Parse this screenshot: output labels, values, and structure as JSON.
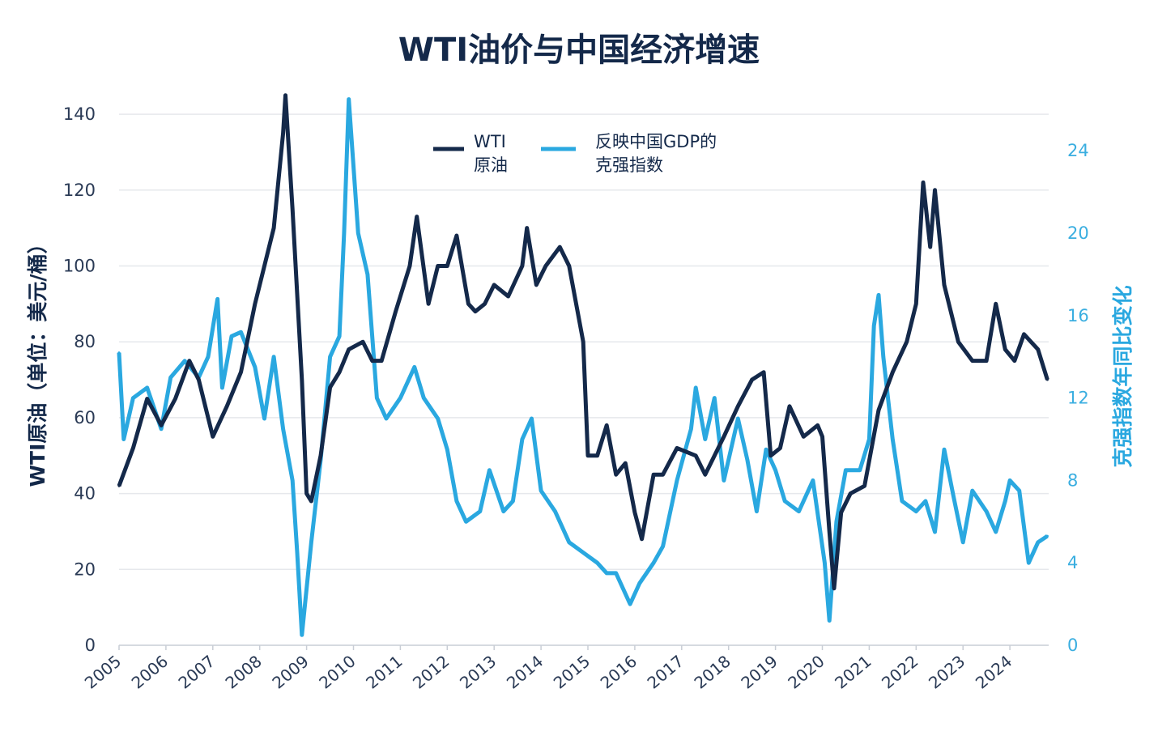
{
  "chart_data": {
    "type": "line",
    "title": "WTI油价与中国经济增速",
    "ylabel_left": "WTI原油（单位：美元/桶）",
    "ylabel_right": "克强指数年同比变化",
    "ylim_left": [
      0,
      145
    ],
    "ylim_right": [
      0,
      26
    ],
    "yticks_left": [
      "0",
      "20",
      "40",
      "60",
      "80",
      "100",
      "120",
      "140"
    ],
    "yticks_right": [
      "0",
      "4",
      "8",
      "12",
      "16",
      "20",
      "24"
    ],
    "xticks": [
      "2005",
      "2006",
      "2007",
      "2008",
      "2009",
      "2010",
      "2011",
      "2012",
      "2013",
      "2014",
      "2015",
      "2016",
      "2017",
      "2018",
      "2019",
      "2020",
      "2021",
      "2022",
      "2023",
      "2024"
    ],
    "grid": true,
    "legend_position": "top-center",
    "colors": {
      "wti": "#14294a",
      "keqiang": "#2aa8e0"
    },
    "series": [
      {
        "name_lines": [
          "WTI",
          "原油"
        ],
        "axis": "left",
        "x": [
          2005.0,
          2005.3,
          2005.6,
          2005.9,
          2006.2,
          2006.5,
          2006.7,
          2006.9,
          2007.0,
          2007.3,
          2007.6,
          2007.9,
          2008.0,
          2008.3,
          2008.5,
          2008.55,
          2008.7,
          2008.9,
          2009.0,
          2009.1,
          2009.3,
          2009.5,
          2009.7,
          2009.9,
          2010.2,
          2010.4,
          2010.6,
          2010.9,
          2011.2,
          2011.35,
          2011.6,
          2011.8,
          2012.0,
          2012.2,
          2012.45,
          2012.6,
          2012.8,
          2013.0,
          2013.3,
          2013.6,
          2013.7,
          2013.9,
          2014.1,
          2014.4,
          2014.6,
          2014.9,
          2015.0,
          2015.2,
          2015.4,
          2015.6,
          2015.8,
          2016.0,
          2016.15,
          2016.4,
          2016.6,
          2016.9,
          2017.3,
          2017.5,
          2017.9,
          2018.2,
          2018.5,
          2018.75,
          2018.9,
          2019.1,
          2019.3,
          2019.6,
          2019.9,
          2020.0,
          2020.15,
          2020.25,
          2020.4,
          2020.6,
          2020.9,
          2021.2,
          2021.5,
          2021.8,
          2022.0,
          2022.15,
          2022.3,
          2022.4,
          2022.6,
          2022.9,
          2023.2,
          2023.5,
          2023.7,
          2023.9,
          2024.1,
          2024.3,
          2024.6,
          2024.8
        ],
        "y": [
          42,
          52,
          65,
          58,
          65,
          75,
          70,
          60,
          55,
          63,
          72,
          90,
          95,
          110,
          135,
          145,
          115,
          70,
          40,
          38,
          50,
          68,
          72,
          78,
          80,
          75,
          75,
          88,
          100,
          113,
          90,
          100,
          100,
          108,
          90,
          88,
          90,
          95,
          92,
          100,
          110,
          95,
          100,
          105,
          100,
          80,
          50,
          50,
          58,
          45,
          48,
          35,
          28,
          45,
          45,
          52,
          50,
          45,
          55,
          63,
          70,
          72,
          50,
          52,
          63,
          55,
          58,
          55,
          30,
          15,
          35,
          40,
          42,
          62,
          72,
          80,
          90,
          122,
          105,
          120,
          95,
          80,
          75,
          75,
          90,
          78,
          75,
          82,
          78,
          70
        ]
      },
      {
        "name_lines": [
          "反映中国GDP的",
          "克强指数"
        ],
        "axis": "right",
        "x": [
          2005.0,
          2005.1,
          2005.3,
          2005.6,
          2005.9,
          2006.1,
          2006.4,
          2006.7,
          2006.9,
          2007.1,
          2007.2,
          2007.4,
          2007.6,
          2007.9,
          2008.1,
          2008.3,
          2008.5,
          2008.7,
          2008.8,
          2008.9,
          2009.1,
          2009.3,
          2009.5,
          2009.7,
          2009.8,
          2009.9,
          2010.1,
          2010.3,
          2010.5,
          2010.7,
          2011.0,
          2011.3,
          2011.5,
          2011.8,
          2012.0,
          2012.2,
          2012.4,
          2012.7,
          2012.9,
          2013.2,
          2013.4,
          2013.6,
          2013.8,
          2014.0,
          2014.3,
          2014.6,
          2014.9,
          2015.2,
          2015.4,
          2015.6,
          2015.9,
          2016.1,
          2016.4,
          2016.6,
          2016.9,
          2017.2,
          2017.3,
          2017.5,
          2017.7,
          2017.9,
          2018.2,
          2018.4,
          2018.6,
          2018.8,
          2019.0,
          2019.2,
          2019.5,
          2019.8,
          2020.05,
          2020.15,
          2020.3,
          2020.5,
          2020.8,
          2021.0,
          2021.1,
          2021.2,
          2021.3,
          2021.5,
          2021.7,
          2022.0,
          2022.2,
          2022.4,
          2022.6,
          2022.8,
          2023.0,
          2023.2,
          2023.5,
          2023.7,
          2023.9,
          2024.0,
          2024.2,
          2024.4,
          2024.6,
          2024.8
        ],
        "y": [
          14.2,
          10,
          12,
          12.5,
          10.5,
          13,
          13.8,
          13,
          14,
          16.8,
          12.5,
          15,
          15.2,
          13.5,
          11,
          14,
          10.5,
          8,
          4.5,
          0.5,
          5,
          9,
          14,
          15,
          20,
          26.5,
          20,
          18,
          12,
          11,
          12,
          13.5,
          12,
          11,
          9.5,
          7,
          6,
          6.5,
          8.5,
          6.5,
          7,
          10,
          11,
          7.5,
          6.5,
          5,
          4.5,
          4,
          3.5,
          3.5,
          2,
          3,
          4,
          4.8,
          8,
          10.5,
          12.5,
          10,
          12,
          8,
          11,
          9,
          6.5,
          9.5,
          8.5,
          7,
          6.5,
          8,
          4,
          1.2,
          6,
          8.5,
          8.5,
          10,
          15.5,
          17,
          14,
          10,
          7,
          6.5,
          7,
          5.5,
          9.5,
          7.2,
          5,
          7.5,
          6.5,
          5.5,
          7,
          8,
          7.5,
          4,
          5,
          5.3
        ]
      }
    ]
  }
}
